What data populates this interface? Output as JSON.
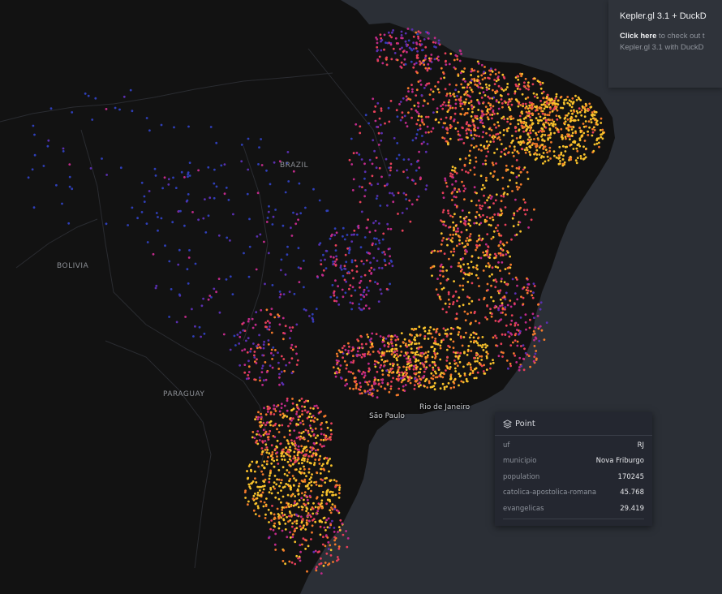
{
  "map": {
    "land_color": "#121212",
    "ocean_color": "#2b2f36",
    "country_labels": [
      "BRAZIL",
      "BOLIVIA",
      "PARAGUAY"
    ],
    "city_labels": [
      "Rio de Janeiro",
      "São Paulo"
    ],
    "point_colors": [
      "#2f3fb8",
      "#5a2fb0",
      "#c02a8a",
      "#e8405a",
      "#f47a2a",
      "#f8c22b"
    ]
  },
  "notice": {
    "title": "Kepler.gl 3.1 + DuckD",
    "link_text": "Click here",
    "line1_rest": " to check out t",
    "line2": "Kepler.gl 3.1 with DuckD"
  },
  "tooltip": {
    "title": "Point",
    "rows": [
      {
        "key": "uf",
        "value": "RJ"
      },
      {
        "key": "municipio",
        "value": "Nova Friburgo"
      },
      {
        "key": "population",
        "value": "170245"
      },
      {
        "key": "catolica-apostolica-romana",
        "value": "45.768"
      },
      {
        "key": "evangelicas",
        "value": "29.419"
      }
    ]
  }
}
